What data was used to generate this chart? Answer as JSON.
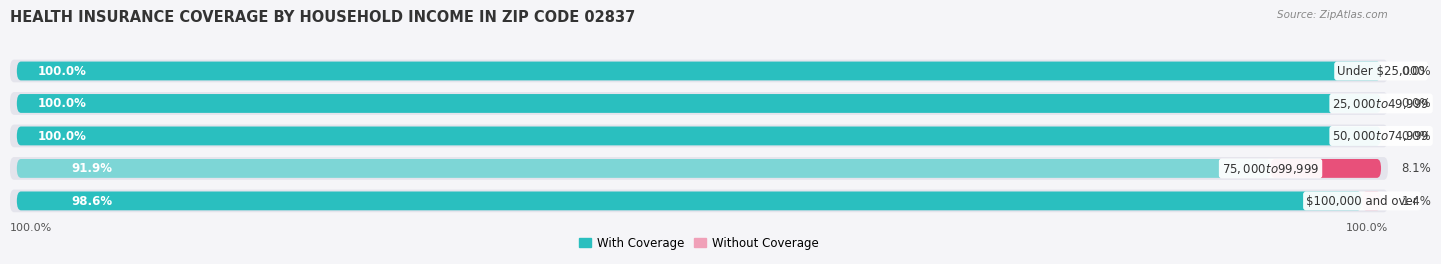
{
  "title": "HEALTH INSURANCE COVERAGE BY HOUSEHOLD INCOME IN ZIP CODE 02837",
  "source": "Source: ZipAtlas.com",
  "categories": [
    "Under $25,000",
    "$25,000 to $49,999",
    "$50,000 to $74,999",
    "$75,000 to $99,999",
    "$100,000 and over"
  ],
  "with_coverage": [
    100.0,
    100.0,
    100.0,
    91.9,
    98.6
  ],
  "without_coverage": [
    0.0,
    0.0,
    0.0,
    8.1,
    1.4
  ],
  "color_with": "#2abfbf",
  "color_without_bright": "#e8507a",
  "color_without_light": "#f0a0b8",
  "color_with_light": "#7dd6d6",
  "bg_color": "#f5f5f8",
  "bar_bg_color": "#e4e4ec",
  "title_fontsize": 10.5,
  "label_fontsize": 8.5,
  "tick_fontsize": 8,
  "legend_fontsize": 8.5
}
